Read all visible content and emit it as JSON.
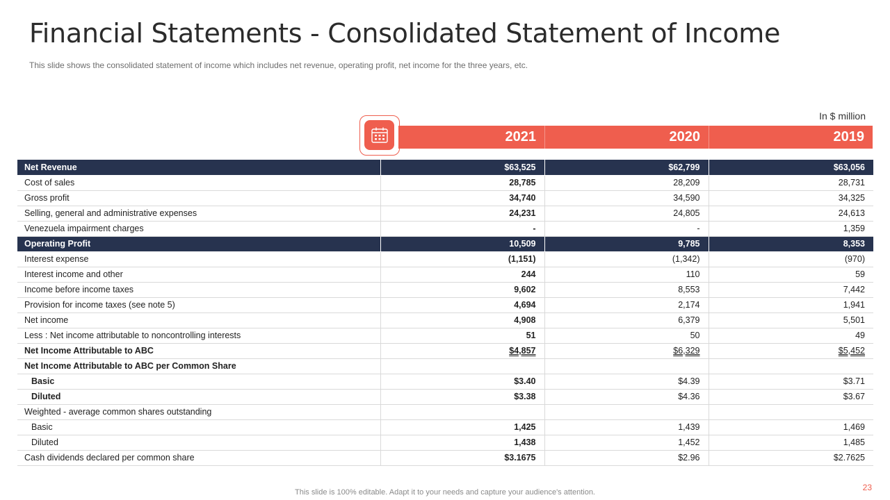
{
  "slide": {
    "title": "Financial Statements - Consolidated Statement of Income",
    "subtitle": "This slide shows the consolidated statement of income which includes net revenue,  operating profit, net income for the three years, etc.",
    "units": "In $ million",
    "footer": "This slide is 100% editable. Adapt it to your needs and capture your audience's attention.",
    "page_number": "23"
  },
  "years": [
    "2021",
    "2020",
    "2019"
  ],
  "icon": {
    "name": "calendar-icon",
    "color": "#ef5e4e"
  },
  "colors": {
    "accent": "#ef5e4e",
    "navy": "#27334f"
  },
  "rows": [
    {
      "label": "Net Revenue",
      "v2021": "$63,525",
      "v2020": "$62,799",
      "v2019": "$63,056"
    },
    {
      "label": "Cost of sales",
      "v2021": "28,785",
      "v2020": "28,209",
      "v2019": "28,731"
    },
    {
      "label": "Gross profit",
      "v2021": "34,740",
      "v2020": "34,590",
      "v2019": "34,325"
    },
    {
      "label": "Selling, general and administrative expenses",
      "v2021": "24,231",
      "v2020": "24,805",
      "v2019": "24,613"
    },
    {
      "label": "Venezuela impairment charges",
      "v2021": "-",
      "v2020": "-",
      "v2019": "1,359"
    },
    {
      "label": "Operating Profit",
      "v2021": "10,509",
      "v2020": "9,785",
      "v2019": "8,353"
    },
    {
      "label": "Interest expense",
      "v2021": "(1,151)",
      "v2020": "(1,342)",
      "v2019": "(970)"
    },
    {
      "label": "Interest income and other",
      "v2021": "244",
      "v2020": "110",
      "v2019": "59"
    },
    {
      "label": "Income before income taxes",
      "v2021": "9,602",
      "v2020": "8,553",
      "v2019": "7,442"
    },
    {
      "label": "Provision for income taxes (see note 5)",
      "v2021": "4,694",
      "v2020": "2,174",
      "v2019": "1,941"
    },
    {
      "label": "Net income",
      "v2021": "4,908",
      "v2020": "6,379",
      "v2019": "5,501"
    },
    {
      "label": "Less : Net income attributable to noncontrolling interests",
      "v2021": "51",
      "v2020": "50",
      "v2019": "49"
    },
    {
      "label": "Net Income Attributable to ABC",
      "v2021": "$4,857",
      "v2020": "$6,329",
      "v2019": "$5,452"
    },
    {
      "label": "Net Income Attributable to ABC  per Common Share",
      "v2021": "",
      "v2020": "",
      "v2019": ""
    },
    {
      "label": "Basic",
      "v2021": "$3.40",
      "v2020": "$4.39",
      "v2019": "$3.71"
    },
    {
      "label": "Diluted",
      "v2021": "$3.38",
      "v2020": "$4.36",
      "v2019": "$3.67"
    },
    {
      "label": "Weighted - average  common shares outstanding",
      "v2021": "",
      "v2020": "",
      "v2019": ""
    },
    {
      "label": "Basic",
      "v2021": "1,425",
      "v2020": "1,439",
      "v2019": "1,469"
    },
    {
      "label": "Diluted",
      "v2021": "1,438",
      "v2020": "1,452",
      "v2019": "1,485"
    },
    {
      "label": "Cash dividends declared per common share",
      "v2021": "$3.1675",
      "v2020": "$2.96",
      "v2019": "$2.7625"
    }
  ]
}
